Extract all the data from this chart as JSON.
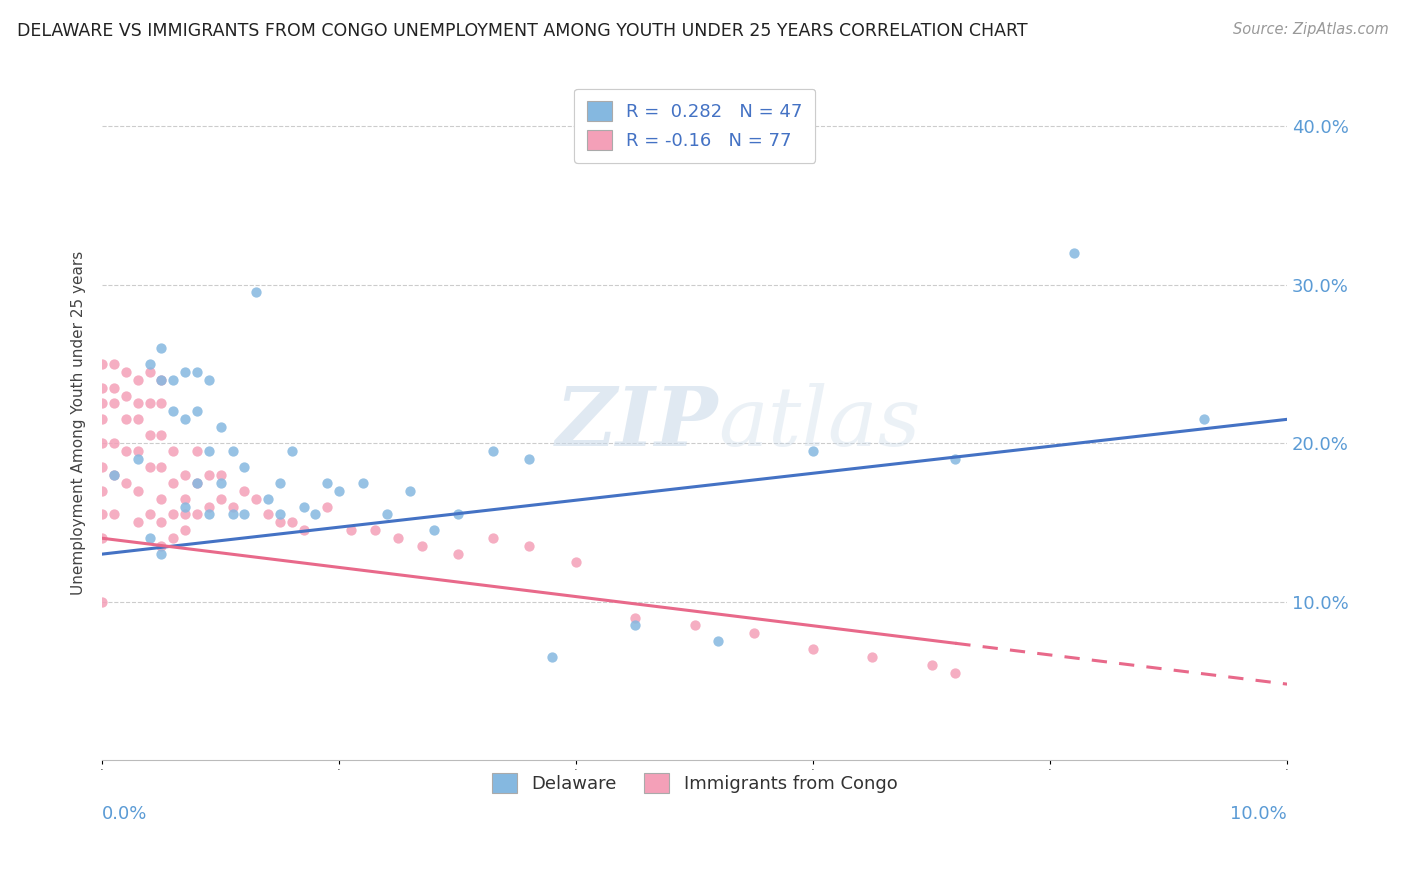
{
  "title": "DELAWARE VS IMMIGRANTS FROM CONGO UNEMPLOYMENT AMONG YOUTH UNDER 25 YEARS CORRELATION CHART",
  "source": "Source: ZipAtlas.com",
  "ylabel": "Unemployment Among Youth under 25 years",
  "y_ticks": [
    "10.0%",
    "20.0%",
    "30.0%",
    "40.0%"
  ],
  "y_tick_vals": [
    0.1,
    0.2,
    0.3,
    0.4
  ],
  "xlim": [
    0.0,
    0.1
  ],
  "ylim": [
    0.0,
    0.425
  ],
  "R_delaware": 0.282,
  "N_delaware": 47,
  "R_congo": -0.16,
  "N_congo": 77,
  "delaware_color": "#85b8e0",
  "congo_color": "#f4a0b8",
  "delaware_line_color": "#4472c4",
  "congo_line_color": "#e8698a",
  "legend_label_delaware": "Delaware",
  "legend_label_congo": "Immigrants from Congo",
  "watermark_zip": "ZIP",
  "watermark_atlas": "atlas",
  "del_line_x0": 0.0,
  "del_line_y0": 0.13,
  "del_line_x1": 0.1,
  "del_line_y1": 0.215,
  "con_line_x0": 0.0,
  "con_line_y0": 0.14,
  "con_line_x1": 0.1,
  "con_line_y1": 0.048,
  "con_line_solid_end": 0.072,
  "delaware_scatter_x": [
    0.001,
    0.003,
    0.004,
    0.004,
    0.005,
    0.005,
    0.005,
    0.006,
    0.006,
    0.007,
    0.007,
    0.007,
    0.008,
    0.008,
    0.008,
    0.009,
    0.009,
    0.009,
    0.01,
    0.01,
    0.011,
    0.011,
    0.012,
    0.012,
    0.013,
    0.014,
    0.015,
    0.015,
    0.016,
    0.017,
    0.018,
    0.019,
    0.02,
    0.022,
    0.024,
    0.026,
    0.028,
    0.03,
    0.033,
    0.036,
    0.038,
    0.045,
    0.052,
    0.06,
    0.072,
    0.082,
    0.093
  ],
  "delaware_scatter_y": [
    0.18,
    0.19,
    0.25,
    0.14,
    0.26,
    0.24,
    0.13,
    0.24,
    0.22,
    0.245,
    0.215,
    0.16,
    0.245,
    0.22,
    0.175,
    0.24,
    0.195,
    0.155,
    0.21,
    0.175,
    0.195,
    0.155,
    0.185,
    0.155,
    0.295,
    0.165,
    0.175,
    0.155,
    0.195,
    0.16,
    0.155,
    0.175,
    0.17,
    0.175,
    0.155,
    0.17,
    0.145,
    0.155,
    0.195,
    0.19,
    0.065,
    0.085,
    0.075,
    0.195,
    0.19,
    0.32,
    0.215
  ],
  "congo_scatter_x": [
    0.0,
    0.0,
    0.0,
    0.0,
    0.0,
    0.0,
    0.0,
    0.0,
    0.0,
    0.0,
    0.001,
    0.001,
    0.001,
    0.001,
    0.001,
    0.001,
    0.002,
    0.002,
    0.002,
    0.002,
    0.002,
    0.003,
    0.003,
    0.003,
    0.003,
    0.003,
    0.003,
    0.004,
    0.004,
    0.004,
    0.004,
    0.004,
    0.005,
    0.005,
    0.005,
    0.005,
    0.005,
    0.005,
    0.005,
    0.006,
    0.006,
    0.006,
    0.006,
    0.007,
    0.007,
    0.007,
    0.007,
    0.008,
    0.008,
    0.008,
    0.009,
    0.009,
    0.01,
    0.01,
    0.011,
    0.012,
    0.013,
    0.014,
    0.015,
    0.016,
    0.017,
    0.019,
    0.021,
    0.023,
    0.025,
    0.027,
    0.03,
    0.033,
    0.036,
    0.04,
    0.045,
    0.05,
    0.055,
    0.06,
    0.065,
    0.07,
    0.072
  ],
  "congo_scatter_y": [
    0.25,
    0.235,
    0.225,
    0.215,
    0.2,
    0.185,
    0.17,
    0.155,
    0.14,
    0.1,
    0.25,
    0.235,
    0.225,
    0.2,
    0.18,
    0.155,
    0.245,
    0.23,
    0.215,
    0.195,
    0.175,
    0.24,
    0.225,
    0.215,
    0.195,
    0.17,
    0.15,
    0.245,
    0.225,
    0.205,
    0.185,
    0.155,
    0.24,
    0.225,
    0.205,
    0.185,
    0.165,
    0.15,
    0.135,
    0.195,
    0.175,
    0.155,
    0.14,
    0.18,
    0.165,
    0.155,
    0.145,
    0.195,
    0.175,
    0.155,
    0.18,
    0.16,
    0.18,
    0.165,
    0.16,
    0.17,
    0.165,
    0.155,
    0.15,
    0.15,
    0.145,
    0.16,
    0.145,
    0.145,
    0.14,
    0.135,
    0.13,
    0.14,
    0.135,
    0.125,
    0.09,
    0.085,
    0.08,
    0.07,
    0.065,
    0.06,
    0.055
  ]
}
